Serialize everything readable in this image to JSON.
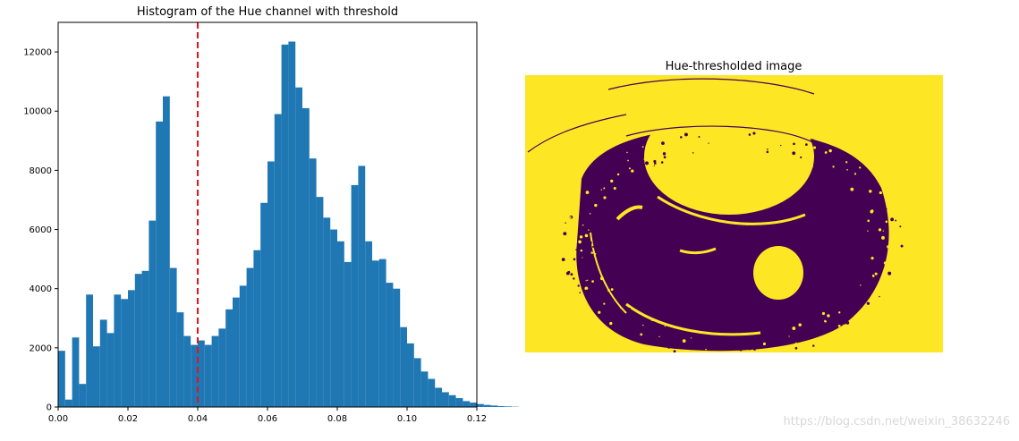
{
  "chart_data": [
    {
      "type": "bar",
      "title": "Histogram of the Hue channel with threshold",
      "xlabel": "",
      "ylabel": "",
      "xlim": [
        0,
        0.12
      ],
      "ylim": [
        0,
        13000
      ],
      "xticks": [
        "0.00",
        "0.02",
        "0.04",
        "0.06",
        "0.08",
        "0.10",
        "0.12"
      ],
      "yticks": [
        "0",
        "2000",
        "4000",
        "6000",
        "8000",
        "10000",
        "12000"
      ],
      "bin_width": 0.002,
      "bin_start": 0.0,
      "values": [
        1900,
        250,
        2350,
        780,
        3800,
        2050,
        2950,
        2500,
        3800,
        3650,
        3950,
        4500,
        4600,
        6300,
        9650,
        10500,
        4700,
        3200,
        2400,
        2100,
        2250,
        2100,
        2400,
        2650,
        3300,
        3700,
        4100,
        4700,
        5300,
        6900,
        8300,
        9900,
        12250,
        12350,
        10800,
        10100,
        8400,
        7100,
        6400,
        6000,
        5600,
        4900,
        7500,
        8150,
        5600,
        4950,
        5000,
        4200,
        4000,
        2700,
        2150,
        1650,
        1200,
        950,
        650,
        500,
        400,
        300,
        200,
        150,
        100,
        70,
        50,
        30,
        20,
        10
      ],
      "threshold": 0.04,
      "colors": {
        "bars": "#1f77b4",
        "threshold": "#e8121e"
      },
      "grid": false
    },
    {
      "type": "image",
      "title": "Hue-thresholded image",
      "colors": {
        "foreground": "#fde725",
        "background": "#440154"
      }
    }
  ],
  "watermark": "https://blog.csdn.net/weixin_38632246"
}
